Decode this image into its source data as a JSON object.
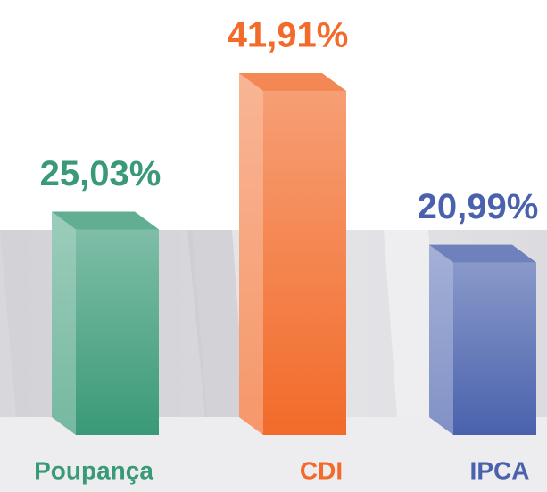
{
  "chart_data": {
    "type": "bar",
    "categories": [
      "Poupança",
      "CDI",
      "IPCA"
    ],
    "values": [
      25.03,
      41.91,
      20.99
    ],
    "value_labels": [
      "25,03%",
      "41,91%",
      "20,99%"
    ],
    "colors": [
      "#3a9a78",
      "#f26b2a",
      "#4a62ad"
    ]
  }
}
